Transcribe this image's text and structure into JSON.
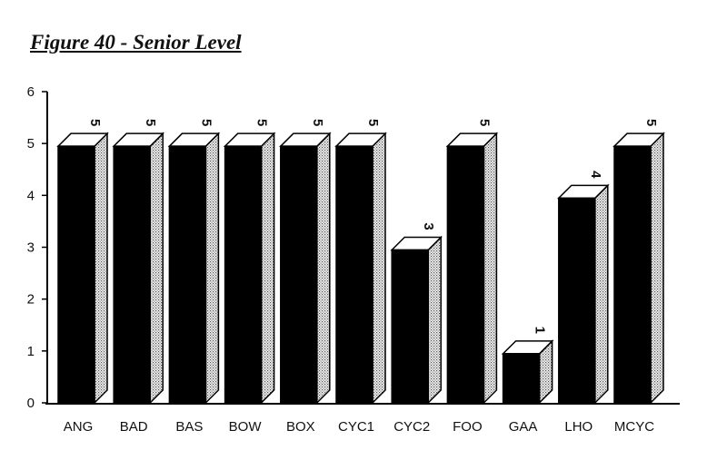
{
  "chart_data": {
    "type": "bar",
    "title": "Figure 40 - Senior Level",
    "xlabel": "",
    "ylabel": "",
    "categories": [
      "ANG",
      "BAD",
      "BAS",
      "BOW",
      "BOX",
      "CYC1",
      "CYC2",
      "FOO",
      "GAA",
      "LHO",
      "MCYC"
    ],
    "values": [
      5,
      5,
      5,
      5,
      5,
      5,
      3,
      5,
      1,
      4,
      5
    ],
    "data_labels": [
      "5",
      "5",
      "5",
      "5",
      "5",
      "5",
      "3",
      "5",
      "1",
      "4",
      "5"
    ],
    "y_ticks": [
      "0",
      "1",
      "2",
      "3",
      "4",
      "5",
      "6"
    ],
    "ylim": [
      0,
      6
    ],
    "grid": false,
    "legend": "none",
    "style": "3d",
    "colors": {
      "front": "#000000",
      "top": "#ffffff",
      "side": "#cfcfcf",
      "outline": "#000000"
    }
  }
}
